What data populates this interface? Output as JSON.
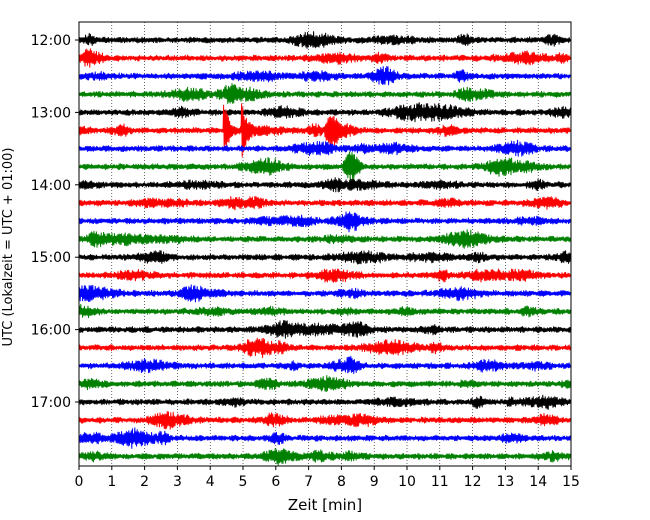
{
  "chart_data": {
    "type": "line",
    "title": "",
    "xlabel": "Zeit  [min]",
    "ylabel": "UTC (Lokalzeit = UTC + 01:00)",
    "xlim": [
      0,
      15
    ],
    "x_ticks": [
      "0",
      "1",
      "2",
      "3",
      "4",
      "5",
      "6",
      "7",
      "8",
      "9",
      "10",
      "11",
      "12",
      "13",
      "14",
      "15"
    ],
    "y_ticks": [
      "12:00",
      "13:00",
      "14:00",
      "15:00",
      "16:00",
      "17:00"
    ],
    "grid": "vertical dotted at each minute",
    "trace_minutes": 15,
    "row_colors": [
      "#000000",
      "#ff0000",
      "#0000ff",
      "#008000"
    ],
    "traces_start": "12:00",
    "traces_end": "17:45",
    "events": [
      {
        "trace_start": "13:15",
        "minute": 4.4,
        "amplitude": "large"
      },
      {
        "trace_start": "13:15",
        "minute": 4.95,
        "amplitude": "large"
      },
      {
        "trace_start": "13:15",
        "minute": 7.55,
        "amplitude": "medium"
      },
      {
        "trace_start": "13:45",
        "minute": 8.1,
        "amplitude": "medium"
      }
    ]
  }
}
